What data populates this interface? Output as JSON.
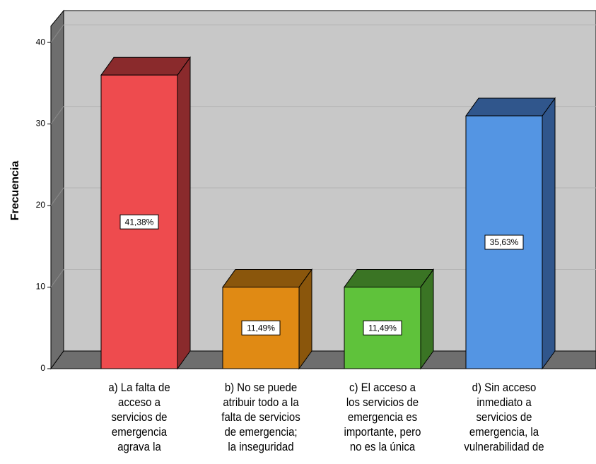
{
  "chart_data": {
    "type": "bar3d",
    "y_label": "Frecuencia",
    "categories": [
      "a) La falta de\nacceso a\nservicios de\nemergencia\nagrava la",
      "b) No se puede\natribuir todo a la\nfalta de servicios\nde emergencia;\nla inseguridad",
      "c) El acceso a\nlos servicios de\nemergencia es\nimportante, pero\nno es la única",
      "d) Sin acceso\ninmediato a\nservicios de\nemergencia, la\nvulnerabilidad de"
    ],
    "values": [
      36,
      10,
      10,
      31
    ],
    "percentages": [
      41.38,
      11.49,
      11.49,
      35.63
    ],
    "percentage_labels": [
      "41,38%",
      "11,49%",
      "11,49%",
      "35,63%"
    ],
    "colors": [
      "#ee4b4e",
      "#e08a14",
      "#5fc23b",
      "#5495e3"
    ],
    "side_colors": [
      "#8a2a2c",
      "#8a560c",
      "#3a7424",
      "#30568c"
    ],
    "ylim": [
      0,
      42
    ],
    "yticks": [
      0,
      10,
      20,
      30,
      40
    ],
    "grid": true
  }
}
